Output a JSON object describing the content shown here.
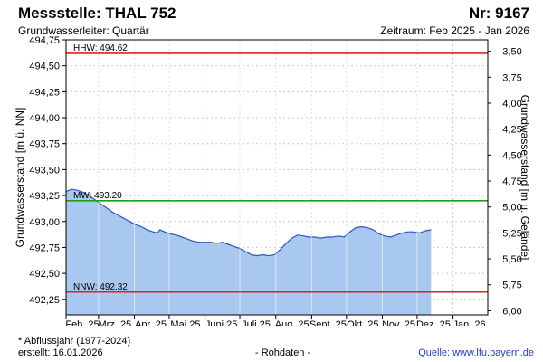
{
  "header": {
    "title": "Messstelle: THAL 752",
    "number": "Nr: 9167",
    "subtitle": "Grundwasserleiter: Quartär",
    "period": "Zeitraum: Feb 2025 - Jan 2026"
  },
  "footer": {
    "note": "* Abflussjahr (1977-2024)",
    "created": "erstellt:  16.01.2026",
    "status": "- Rohdaten -",
    "source": "Quelle: www.lfu.bayern.de"
  },
  "colors": {
    "area_fill": "#a8c8f0",
    "area_line": "#2f55c0",
    "hhw": "#e02020",
    "nnw": "#e02020",
    "mw": "#1aa01a",
    "grid": "#c8c8c8"
  },
  "chart_data": {
    "type": "area",
    "ylabel": "Grundwasserstand [m ü. NN]",
    "ylabel_right": "Grundwasserstand [m u. Gelände]",
    "ylim": [
      492.1,
      494.75
    ],
    "yticks": [
      "494,75",
      "494,50",
      "494,25",
      "494,00",
      "493,75",
      "493,50",
      "493,25",
      "493,00",
      "492,75",
      "492,50",
      "492,25"
    ],
    "ytick_values": [
      494.75,
      494.5,
      494.25,
      494.0,
      493.75,
      493.5,
      493.25,
      493.0,
      492.75,
      492.5,
      492.25
    ],
    "yticks_right": [
      "3,50",
      "3,75",
      "4,00",
      "4,25",
      "4,50",
      "4,75",
      "5,00",
      "5,25",
      "5,50",
      "5,75",
      "6,00"
    ],
    "yticks_right_values": [
      494.64,
      494.39,
      494.14,
      493.89,
      493.64,
      493.39,
      493.14,
      492.89,
      492.64,
      492.39,
      492.14
    ],
    "xticks": [
      "Feb. 25",
      "Mrz. 25",
      "Apr. 25",
      "Mai 25",
      "Juni 25",
      "Juli 25",
      "Aug. 25",
      "Sept. 25",
      "Okt. 25",
      "Nov. 25",
      "Dez. 25",
      "Jan. 26"
    ],
    "xlim": [
      "2025-02-01",
      "2026-01-31"
    ],
    "reference_lines": [
      {
        "label": "HHW: 494.62",
        "value": 494.62
      },
      {
        "label": "MW: 493.20",
        "value": 493.2
      },
      {
        "label": "NNW: 492.32",
        "value": 492.32
      }
    ],
    "series": [
      {
        "x": [
          "2025-02-01",
          "2025-02-06",
          "2025-02-11",
          "2025-02-16",
          "2025-02-21",
          "2025-02-26",
          "2025-03-03",
          "2025-03-08",
          "2025-03-13",
          "2025-03-18",
          "2025-03-23",
          "2025-03-28",
          "2025-04-02",
          "2025-04-07",
          "2025-04-12",
          "2025-04-17",
          "2025-04-21",
          "2025-04-23",
          "2025-04-27",
          "2025-05-02",
          "2025-05-07",
          "2025-05-12",
          "2025-05-17",
          "2025-05-22",
          "2025-05-27",
          "2025-06-01",
          "2025-06-06",
          "2025-06-11",
          "2025-06-16",
          "2025-06-21",
          "2025-06-26",
          "2025-07-01",
          "2025-07-06",
          "2025-07-11",
          "2025-07-16",
          "2025-07-21",
          "2025-07-26",
          "2025-07-31",
          "2025-08-05",
          "2025-08-10",
          "2025-08-15",
          "2025-08-20",
          "2025-08-25",
          "2025-08-30",
          "2025-09-04",
          "2025-09-09",
          "2025-09-14",
          "2025-09-19",
          "2025-09-24",
          "2025-09-29",
          "2025-10-04",
          "2025-10-09",
          "2025-10-14",
          "2025-10-19",
          "2025-10-24",
          "2025-10-29",
          "2025-11-03",
          "2025-11-08",
          "2025-11-13",
          "2025-11-18",
          "2025-11-23",
          "2025-11-28",
          "2025-12-03",
          "2025-12-08",
          "2025-12-13"
        ],
        "y": [
          493.29,
          493.31,
          493.3,
          493.28,
          493.25,
          493.21,
          493.17,
          493.13,
          493.09,
          493.06,
          493.03,
          493.0,
          492.97,
          492.95,
          492.92,
          492.9,
          492.89,
          492.92,
          492.9,
          492.88,
          492.87,
          492.85,
          492.83,
          492.81,
          492.8,
          492.8,
          492.8,
          492.79,
          492.8,
          492.78,
          492.76,
          492.74,
          492.71,
          492.68,
          492.67,
          492.68,
          492.67,
          492.68,
          492.73,
          492.79,
          492.84,
          492.87,
          492.86,
          492.85,
          492.85,
          492.84,
          492.85,
          492.85,
          492.86,
          492.85,
          492.9,
          492.94,
          492.95,
          492.94,
          492.92,
          492.88,
          492.86,
          492.85,
          492.87,
          492.89,
          492.9,
          492.9,
          492.89,
          492.91,
          492.92
        ]
      }
    ]
  }
}
